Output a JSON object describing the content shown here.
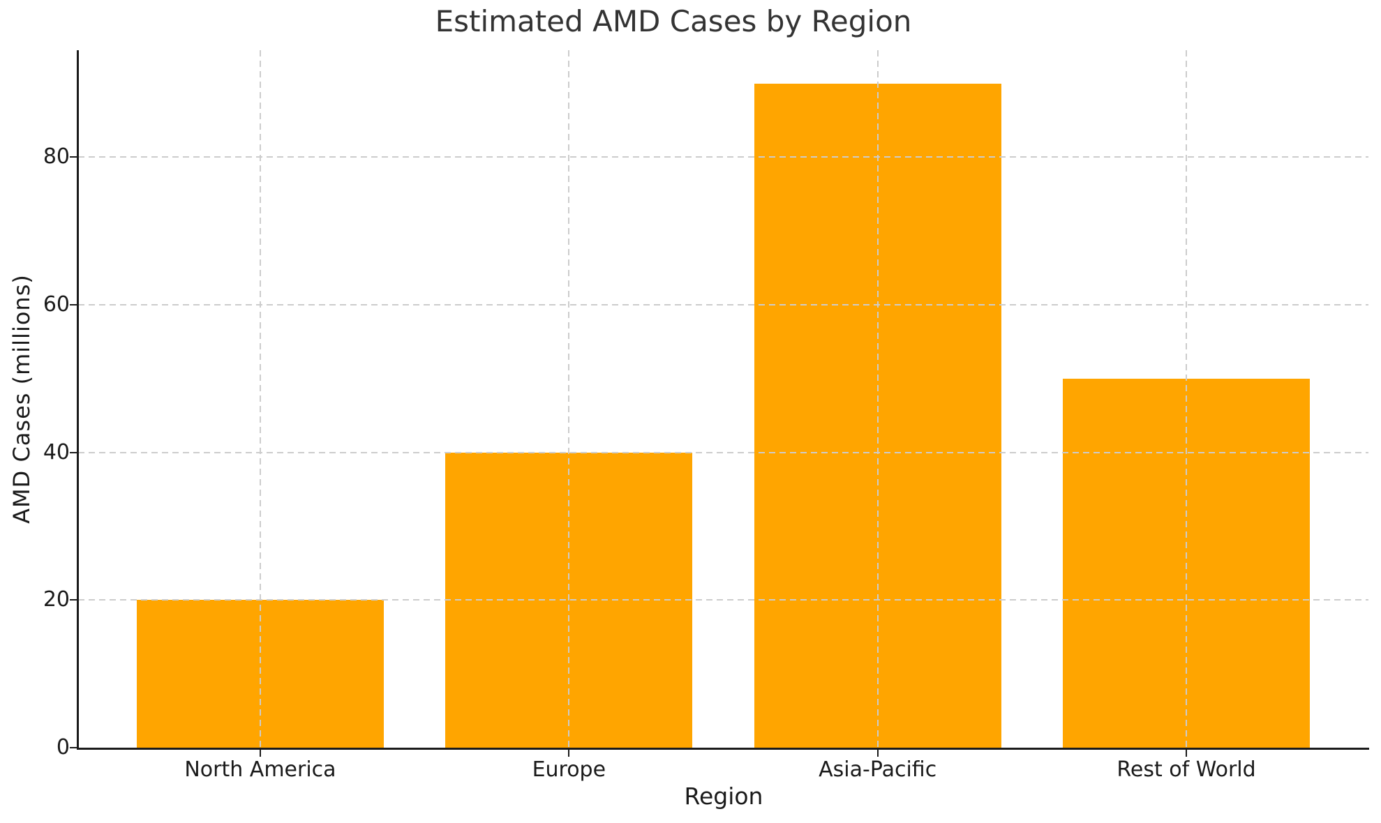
{
  "chart_data": {
    "type": "bar",
    "title": "Estimated AMD Cases by Region",
    "xlabel": "Region",
    "ylabel": "AMD Cases (millions)",
    "categories": [
      "North America",
      "Europe",
      "Asia-Pacific",
      "Rest of World"
    ],
    "values": [
      20,
      40,
      90,
      50
    ],
    "yticks": [
      0,
      20,
      40,
      60,
      80
    ],
    "ylim": [
      0,
      94.5
    ],
    "bar_color": "#FFA500",
    "grid": "dashed-both-axes-above-bars",
    "gridline_color": "#cccccc",
    "spine_color": "#1a1a1a",
    "legend": null
  }
}
